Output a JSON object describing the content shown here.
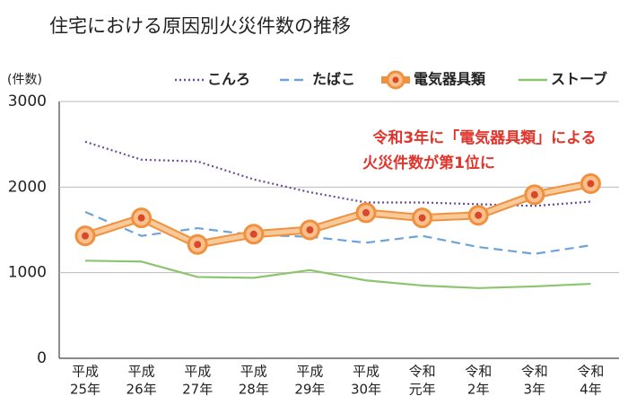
{
  "chart_data": {
    "type": "line",
    "title": "住宅における原因別火災件数の推移",
    "y_label": "(件数)",
    "annotation": [
      "令和3年に「電気器具類」による",
      "火災件数が第1位に"
    ],
    "categories": [
      [
        "平成",
        "25年"
      ],
      [
        "平成",
        "26年"
      ],
      [
        "平成",
        "27年"
      ],
      [
        "平成",
        "28年"
      ],
      [
        "平成",
        "29年"
      ],
      [
        "平成",
        "30年"
      ],
      [
        "令和",
        "元年"
      ],
      [
        "令和",
        "2年"
      ],
      [
        "令和",
        "3年"
      ],
      [
        "令和",
        "4年"
      ]
    ],
    "ylim": [
      0,
      3000
    ],
    "yticks": [
      0,
      1000,
      2000,
      3000
    ],
    "grid": true,
    "series": [
      {
        "name": "こんろ",
        "color": "#6a4c9c",
        "style": "dotted",
        "values": [
          2530,
          2320,
          2300,
          2090,
          1940,
          1820,
          1820,
          1800,
          1780,
          1830
        ]
      },
      {
        "name": "たばこ",
        "color": "#6fa3d8",
        "style": "dashed",
        "values": [
          1710,
          1430,
          1520,
          1440,
          1420,
          1350,
          1430,
          1300,
          1220,
          1320
        ]
      },
      {
        "name": "電気器具類",
        "color": "#f0913f",
        "style": "marker",
        "values": [
          1430,
          1640,
          1330,
          1450,
          1500,
          1700,
          1640,
          1670,
          1910,
          2040
        ]
      },
      {
        "name": "ストーブ",
        "color": "#8cc56e",
        "style": "solid",
        "values": [
          1140,
          1130,
          950,
          940,
          1030,
          910,
          850,
          820,
          840,
          870
        ]
      }
    ]
  }
}
